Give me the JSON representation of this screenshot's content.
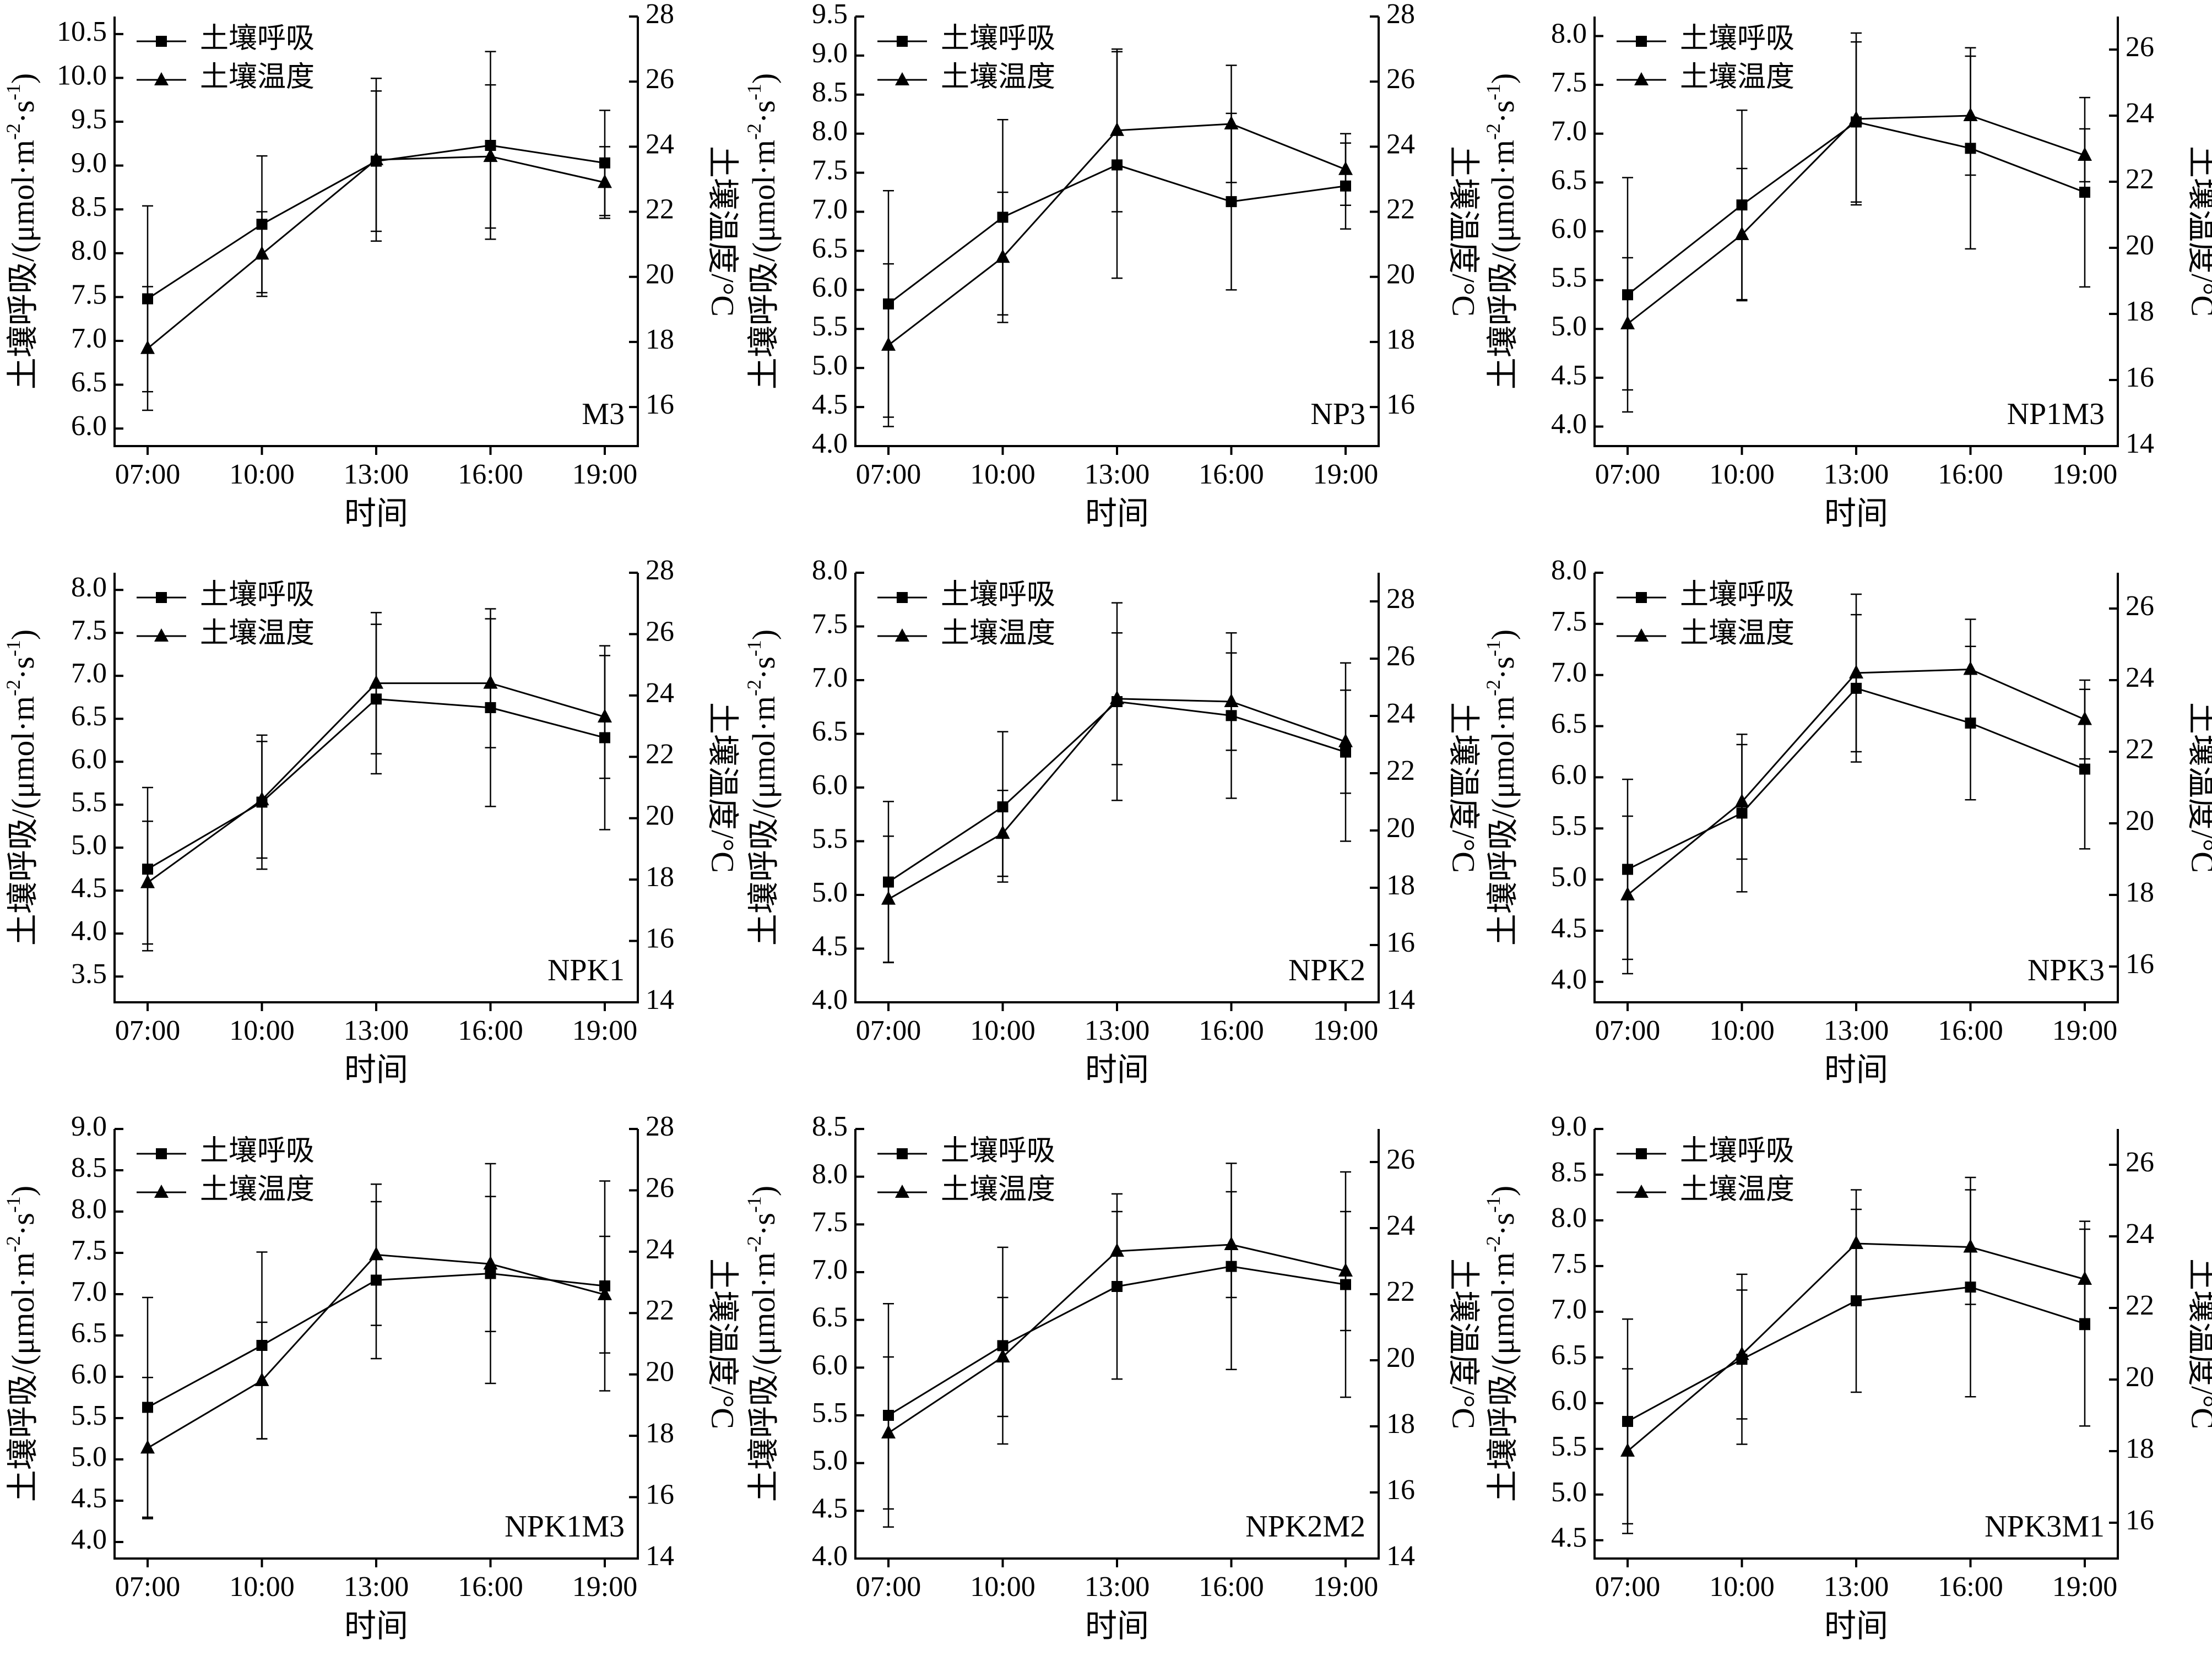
{
  "legend": {
    "resp_label": "土壤呼吸",
    "temp_label": "土壤温度"
  },
  "axes": {
    "xlabel": "时间",
    "ylabel_left": "土壤呼吸/(μmol·m-2·s-1)",
    "ylabel_right": "土壤温度/°C"
  },
  "chart_data": [
    {
      "type": "line",
      "panel": "M3",
      "categories": [
        "07:00",
        "10:00",
        "13:00",
        "16:00",
        "19:00"
      ],
      "ylim": [
        5.8,
        10.7
      ],
      "y_ticks": [
        6.0,
        6.5,
        7.0,
        7.5,
        8.0,
        8.5,
        9.0,
        9.5,
        10.0,
        10.5
      ],
      "y2lim": [
        14.8,
        28
      ],
      "y2_ticks": [
        16,
        18,
        20,
        22,
        24,
        26,
        28
      ],
      "series": [
        {
          "name": "土壤呼吸",
          "axis": "left",
          "marker": "square",
          "values": [
            7.48,
            8.33,
            9.05,
            9.23,
            9.03
          ],
          "error": [
            1.06,
            0.78,
            0.8,
            1.07,
            0.6
          ]
        },
        {
          "name": "土壤温度",
          "axis": "right",
          "marker": "triangle",
          "values": [
            17.8,
            20.7,
            23.6,
            23.7,
            22.9
          ],
          "error": [
            1.9,
            1.3,
            2.5,
            2.2,
            1.1
          ]
        }
      ]
    },
    {
      "type": "line",
      "panel": "NP3",
      "categories": [
        "07:00",
        "10:00",
        "13:00",
        "16:00",
        "19:00"
      ],
      "ylim": [
        4.0,
        9.5
      ],
      "y_ticks": [
        4.0,
        4.5,
        5.0,
        5.5,
        6.0,
        6.5,
        7.0,
        7.5,
        8.0,
        8.5,
        9.0,
        9.5
      ],
      "y2lim": [
        14.8,
        28
      ],
      "y2_ticks": [
        16,
        18,
        20,
        22,
        24,
        26,
        28
      ],
      "series": [
        {
          "name": "土壤呼吸",
          "axis": "left",
          "marker": "square",
          "values": [
            5.82,
            6.93,
            7.6,
            7.13,
            7.33
          ],
          "error": [
            1.45,
            1.25,
            1.45,
            1.13,
            0.55
          ]
        },
        {
          "name": "土壤温度",
          "axis": "right",
          "marker": "triangle",
          "values": [
            17.9,
            20.6,
            24.5,
            24.7,
            23.3
          ],
          "error": [
            2.5,
            2.0,
            2.5,
            1.8,
            1.1
          ]
        }
      ]
    },
    {
      "type": "line",
      "panel": "NP1M3",
      "categories": [
        "07:00",
        "10:00",
        "13:00",
        "16:00",
        "19:00"
      ],
      "ylim": [
        3.8,
        8.2
      ],
      "y_ticks": [
        4.0,
        4.5,
        5.0,
        5.5,
        6.0,
        6.5,
        7.0,
        7.5,
        8.0
      ],
      "y2lim": [
        14,
        27
      ],
      "y2_ticks": [
        14,
        16,
        18,
        20,
        22,
        24,
        26
      ],
      "series": [
        {
          "name": "土壤呼吸",
          "axis": "left",
          "marker": "square",
          "values": [
            5.35,
            6.27,
            7.12,
            6.85,
            6.4
          ],
          "error": [
            1.2,
            0.97,
            0.82,
            1.03,
            0.97
          ]
        },
        {
          "name": "土壤温度",
          "axis": "right",
          "marker": "triangle",
          "values": [
            17.7,
            20.4,
            23.9,
            24.0,
            22.8
          ],
          "error": [
            2.0,
            2.0,
            2.6,
            1.8,
            0.8
          ]
        }
      ]
    },
    {
      "type": "line",
      "panel": "NPK1",
      "categories": [
        "07:00",
        "10:00",
        "13:00",
        "16:00",
        "19:00"
      ],
      "ylim": [
        3.2,
        8.2
      ],
      "y_ticks": [
        3.5,
        4.0,
        4.5,
        5.0,
        5.5,
        6.0,
        6.5,
        7.0,
        7.5,
        8.0
      ],
      "y2lim": [
        14,
        28
      ],
      "y2_ticks": [
        14,
        16,
        18,
        20,
        22,
        24,
        26,
        28
      ],
      "series": [
        {
          "name": "土壤呼吸",
          "axis": "left",
          "marker": "square",
          "values": [
            4.75,
            5.53,
            6.73,
            6.63,
            6.28
          ],
          "error": [
            0.95,
            0.78,
            0.87,
            1.15,
            1.07
          ]
        },
        {
          "name": "土壤温度",
          "axis": "right",
          "marker": "triangle",
          "values": [
            17.9,
            20.6,
            24.4,
            24.4,
            23.3
          ],
          "error": [
            2.0,
            1.9,
            2.3,
            2.1,
            2.0
          ]
        }
      ]
    },
    {
      "type": "line",
      "panel": "NPK2",
      "categories": [
        "07:00",
        "10:00",
        "13:00",
        "16:00",
        "19:00"
      ],
      "ylim": [
        4.0,
        8.0
      ],
      "y_ticks": [
        4.0,
        4.5,
        5.0,
        5.5,
        6.0,
        6.5,
        7.0,
        7.5,
        8.0
      ],
      "y2lim": [
        14,
        29
      ],
      "y2_ticks": [
        14,
        16,
        18,
        20,
        22,
        24,
        26,
        28
      ],
      "series": [
        {
          "name": "土壤呼吸",
          "axis": "left",
          "marker": "square",
          "values": [
            5.12,
            5.82,
            6.8,
            6.67,
            6.33
          ],
          "error": [
            0.75,
            0.7,
            0.92,
            0.77,
            0.83
          ]
        },
        {
          "name": "土壤温度",
          "axis": "right",
          "marker": "triangle",
          "values": [
            17.6,
            19.9,
            24.6,
            24.5,
            23.1
          ],
          "error": [
            2.2,
            1.5,
            2.3,
            1.7,
            1.8
          ]
        }
      ]
    },
    {
      "type": "line",
      "panel": "NPK3",
      "categories": [
        "07:00",
        "10:00",
        "13:00",
        "16:00",
        "19:00"
      ],
      "ylim": [
        3.8,
        8.0
      ],
      "y_ticks": [
        4.0,
        4.5,
        5.0,
        5.5,
        6.0,
        6.5,
        7.0,
        7.5,
        8.0
      ],
      "y2lim": [
        15,
        27
      ],
      "y2_ticks": [
        16,
        18,
        20,
        22,
        24,
        26
      ],
      "series": [
        {
          "name": "土壤呼吸",
          "axis": "left",
          "marker": "square",
          "values": [
            5.1,
            5.65,
            6.87,
            6.53,
            6.08
          ],
          "error": [
            0.88,
            0.77,
            0.72,
            0.75,
            0.78
          ]
        },
        {
          "name": "土壤温度",
          "axis": "right",
          "marker": "triangle",
          "values": [
            18.0,
            20.6,
            24.2,
            24.3,
            22.9
          ],
          "error": [
            2.2,
            1.6,
            2.2,
            1.4,
            1.1
          ]
        }
      ]
    },
    {
      "type": "line",
      "panel": "NPK1M3",
      "categories": [
        "07:00",
        "10:00",
        "13:00",
        "16:00",
        "19:00"
      ],
      "ylim": [
        3.8,
        9.0
      ],
      "y_ticks": [
        4.0,
        4.5,
        5.0,
        5.5,
        6.0,
        6.5,
        7.0,
        7.5,
        8.0,
        8.5,
        9.0
      ],
      "y2lim": [
        14,
        28
      ],
      "y2_ticks": [
        14,
        16,
        18,
        20,
        22,
        24,
        26,
        28
      ],
      "series": [
        {
          "name": "土壤呼吸",
          "axis": "left",
          "marker": "square",
          "values": [
            5.63,
            6.38,
            7.17,
            7.25,
            7.1
          ],
          "error": [
            1.33,
            1.13,
            0.95,
            1.33,
            1.27
          ]
        },
        {
          "name": "土壤温度",
          "axis": "right",
          "marker": "triangle",
          "values": [
            17.6,
            19.8,
            23.9,
            23.6,
            22.6
          ],
          "error": [
            2.3,
            1.9,
            2.3,
            2.2,
            1.9
          ]
        }
      ]
    },
    {
      "type": "line",
      "panel": "NPK2M2",
      "categories": [
        "07:00",
        "10:00",
        "13:00",
        "16:00",
        "19:00"
      ],
      "ylim": [
        4.0,
        8.5
      ],
      "y_ticks": [
        4.0,
        4.5,
        5.0,
        5.5,
        6.0,
        6.5,
        7.0,
        7.5,
        8.0,
        8.5
      ],
      "y2lim": [
        14,
        27
      ],
      "y2_ticks": [
        14,
        16,
        18,
        20,
        22,
        24,
        26
      ],
      "series": [
        {
          "name": "土壤呼吸",
          "axis": "left",
          "marker": "square",
          "values": [
            5.5,
            6.23,
            6.85,
            7.06,
            6.87
          ],
          "error": [
            1.17,
            1.03,
            0.97,
            1.08,
            1.18
          ]
        },
        {
          "name": "土壤温度",
          "axis": "right",
          "marker": "triangle",
          "values": [
            17.8,
            20.1,
            23.3,
            23.5,
            22.7
          ],
          "error": [
            2.3,
            1.8,
            1.2,
            1.6,
            1.8
          ]
        }
      ]
    },
    {
      "type": "line",
      "panel": "NPK3M1",
      "categories": [
        "07:00",
        "10:00",
        "13:00",
        "16:00",
        "19:00"
      ],
      "ylim": [
        4.3,
        9.0
      ],
      "y_ticks": [
        4.5,
        5.0,
        5.5,
        6.0,
        6.5,
        7.0,
        7.5,
        8.0,
        8.5,
        9.0
      ],
      "y2lim": [
        15,
        27
      ],
      "y2_ticks": [
        16,
        18,
        20,
        22,
        24,
        26
      ],
      "series": [
        {
          "name": "土壤呼吸",
          "axis": "left",
          "marker": "square",
          "values": [
            5.8,
            6.48,
            7.12,
            7.27,
            6.87
          ],
          "error": [
            1.12,
            0.93,
            1.0,
            1.2,
            1.12
          ]
        },
        {
          "name": "土壤温度",
          "axis": "right",
          "marker": "triangle",
          "values": [
            18.0,
            20.7,
            23.8,
            23.7,
            22.8
          ],
          "error": [
            2.3,
            1.8,
            1.5,
            1.6,
            1.4
          ]
        }
      ]
    }
  ]
}
